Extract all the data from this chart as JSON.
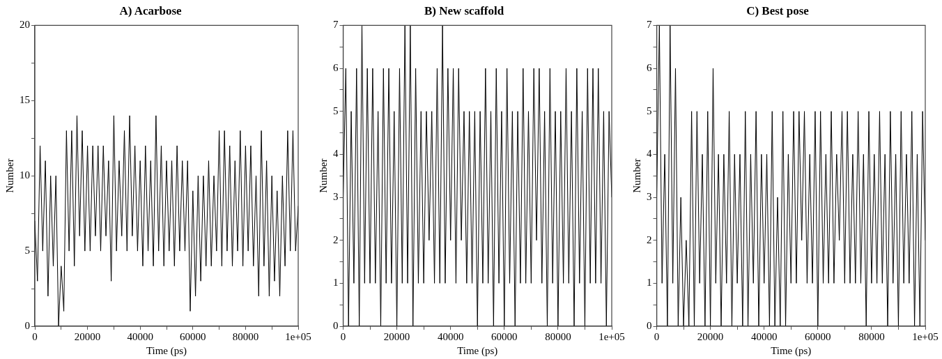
{
  "chart_data": [
    {
      "type": "line",
      "title": "A) Acarbose",
      "xlabel": "Time (ps)",
      "ylabel": "Number",
      "marker": "none",
      "legend": false,
      "x": [
        0,
        1000,
        2000,
        3000,
        4000,
        5000,
        6000,
        7000,
        8000,
        9000,
        10000,
        11000,
        12000,
        13000,
        14000,
        15000,
        16000,
        17000,
        18000,
        19000,
        20000,
        21000,
        22000,
        23000,
        24000,
        25000,
        26000,
        27000,
        28000,
        29000,
        30000,
        31000,
        32000,
        33000,
        34000,
        35000,
        36000,
        37000,
        38000,
        39000,
        40000,
        41000,
        42000,
        43000,
        44000,
        45000,
        46000,
        47000,
        48000,
        49000,
        50000,
        51000,
        52000,
        53000,
        54000,
        55000,
        56000,
        57000,
        58000,
        59000,
        60000,
        61000,
        62000,
        63000,
        64000,
        65000,
        66000,
        67000,
        68000,
        69000,
        70000,
        71000,
        72000,
        73000,
        74000,
        75000,
        76000,
        77000,
        78000,
        79000,
        80000,
        81000,
        82000,
        83000,
        84000,
        85000,
        86000,
        87000,
        88000,
        89000,
        90000,
        91000,
        92000,
        93000,
        94000,
        95000,
        96000,
        97000,
        98000,
        99000,
        100000
      ],
      "series": [
        {
          "color": "#000000",
          "values": [
            7,
            3,
            12,
            5,
            11,
            2,
            10,
            4,
            10,
            0,
            4,
            1,
            13,
            5,
            13,
            4,
            14,
            6,
            13,
            5,
            12,
            5,
            12,
            6,
            12,
            5,
            12,
            6,
            11,
            3,
            14,
            5,
            11,
            6,
            13,
            5,
            14,
            6,
            12,
            5,
            11,
            4,
            12,
            5,
            11,
            4,
            14,
            5,
            12,
            4,
            11,
            5,
            11,
            4,
            12,
            5,
            11,
            5,
            11,
            1,
            9,
            2,
            10,
            3,
            10,
            4,
            11,
            4,
            10,
            5,
            13,
            4,
            13,
            5,
            12,
            4,
            11,
            5,
            13,
            4,
            12,
            5,
            12,
            4,
            10,
            2,
            13,
            4,
            11,
            2,
            10,
            3,
            9,
            2,
            10,
            4,
            13,
            5,
            13,
            5,
            8
          ]
        }
      ],
      "xlim": [
        0,
        100000
      ],
      "xticks": [
        0,
        {
          "value": 10000,
          "label": null
        },
        20000,
        {
          "value": 30000,
          "label": null
        },
        40000,
        {
          "value": 50000,
          "label": null
        },
        60000,
        {
          "value": 70000,
          "label": null
        },
        80000,
        {
          "value": 90000,
          "label": null
        },
        {
          "value": 100000,
          "label": "1e+05"
        }
      ],
      "ylim": [
        0,
        20
      ],
      "yticks": [
        0,
        {
          "value": 2.5,
          "label": null
        },
        5,
        {
          "value": 7.5,
          "label": null
        },
        10,
        {
          "value": 12.5,
          "label": null
        },
        15,
        {
          "value": 17.5,
          "label": null
        },
        20
      ]
    },
    {
      "type": "line",
      "title": "B) New scaffold",
      "xlabel": "Time (ps)",
      "ylabel": "Number",
      "marker": "none",
      "legend": false,
      "x": [
        0,
        1000,
        2000,
        3000,
        4000,
        5000,
        6000,
        7000,
        8000,
        9000,
        10000,
        11000,
        12000,
        13000,
        14000,
        15000,
        16000,
        17000,
        18000,
        19000,
        20000,
        21000,
        22000,
        23000,
        24000,
        25000,
        26000,
        27000,
        28000,
        29000,
        30000,
        31000,
        32000,
        33000,
        34000,
        35000,
        36000,
        37000,
        38000,
        39000,
        40000,
        41000,
        42000,
        43000,
        44000,
        45000,
        46000,
        47000,
        48000,
        49000,
        50000,
        51000,
        52000,
        53000,
        54000,
        55000,
        56000,
        57000,
        58000,
        59000,
        60000,
        61000,
        62000,
        63000,
        64000,
        65000,
        66000,
        67000,
        68000,
        69000,
        70000,
        71000,
        72000,
        73000,
        74000,
        75000,
        76000,
        77000,
        78000,
        79000,
        80000,
        81000,
        82000,
        83000,
        84000,
        85000,
        86000,
        87000,
        88000,
        89000,
        90000,
        91000,
        92000,
        93000,
        94000,
        95000,
        96000,
        97000,
        98000,
        99000,
        100000
      ],
      "series": [
        {
          "color": "#000000",
          "values": [
            3,
            6,
            0,
            5,
            1,
            6,
            0,
            7,
            1,
            6,
            1,
            6,
            1,
            5,
            0,
            6,
            1,
            6,
            1,
            5,
            0,
            6,
            1,
            7,
            1,
            7,
            0,
            6,
            1,
            5,
            1,
            5,
            2,
            5,
            1,
            6,
            1,
            7,
            1,
            6,
            2,
            6,
            1,
            6,
            2,
            5,
            1,
            5,
            1,
            5,
            0,
            5,
            1,
            6,
            1,
            5,
            0,
            6,
            1,
            5,
            0,
            6,
            1,
            5,
            0,
            5,
            1,
            6,
            1,
            5,
            1,
            6,
            2,
            6,
            1,
            5,
            0,
            6,
            1,
            5,
            0,
            5,
            1,
            6,
            1,
            5,
            0,
            6,
            1,
            5,
            0,
            6,
            1,
            6,
            1,
            6,
            1,
            5,
            0,
            5,
            3
          ]
        }
      ],
      "xlim": [
        0,
        100000
      ],
      "xticks": [
        0,
        {
          "value": 10000,
          "label": null
        },
        20000,
        {
          "value": 30000,
          "label": null
        },
        40000,
        {
          "value": 50000,
          "label": null
        },
        60000,
        {
          "value": 70000,
          "label": null
        },
        80000,
        {
          "value": 90000,
          "label": null
        },
        {
          "value": 100000,
          "label": "1e+05"
        }
      ],
      "ylim": [
        0,
        7
      ],
      "yticks": [
        0,
        {
          "value": 0.5,
          "label": null
        },
        1,
        {
          "value": 1.5,
          "label": null
        },
        2,
        {
          "value": 2.5,
          "label": null
        },
        3,
        {
          "value": 3.5,
          "label": null
        },
        4,
        {
          "value": 4.5,
          "label": null
        },
        5,
        {
          "value": 5.5,
          "label": null
        },
        6,
        {
          "value": 6.5,
          "label": null
        },
        7
      ]
    },
    {
      "type": "line",
      "title": "C) Best pose",
      "xlabel": "Time (ps)",
      "ylabel": "Number",
      "marker": "none",
      "legend": false,
      "x": [
        0,
        1000,
        2000,
        3000,
        4000,
        5000,
        6000,
        7000,
        8000,
        9000,
        10000,
        11000,
        12000,
        13000,
        14000,
        15000,
        16000,
        17000,
        18000,
        19000,
        20000,
        21000,
        22000,
        23000,
        24000,
        25000,
        26000,
        27000,
        28000,
        29000,
        30000,
        31000,
        32000,
        33000,
        34000,
        35000,
        36000,
        37000,
        38000,
        39000,
        40000,
        41000,
        42000,
        43000,
        44000,
        45000,
        46000,
        47000,
        48000,
        49000,
        50000,
        51000,
        52000,
        53000,
        54000,
        55000,
        56000,
        57000,
        58000,
        59000,
        60000,
        61000,
        62000,
        63000,
        64000,
        65000,
        66000,
        67000,
        68000,
        69000,
        70000,
        71000,
        72000,
        73000,
        74000,
        75000,
        76000,
        77000,
        78000,
        79000,
        80000,
        81000,
        82000,
        83000,
        84000,
        85000,
        86000,
        87000,
        88000,
        89000,
        90000,
        91000,
        92000,
        93000,
        94000,
        95000,
        96000,
        97000,
        98000,
        99000,
        100000
      ],
      "series": [
        {
          "color": "#000000",
          "values": [
            3,
            7,
            1,
            4,
            0,
            7,
            1,
            6,
            0,
            3,
            0,
            2,
            0,
            5,
            0,
            5,
            1,
            4,
            0,
            5,
            0,
            6,
            1,
            4,
            0,
            4,
            1,
            5,
            0,
            4,
            1,
            4,
            0,
            5,
            0,
            4,
            1,
            5,
            0,
            4,
            1,
            4,
            0,
            5,
            0,
            3,
            0,
            5,
            0,
            4,
            1,
            5,
            1,
            5,
            2,
            5,
            1,
            4,
            1,
            5,
            0,
            5,
            1,
            4,
            1,
            5,
            1,
            4,
            2,
            5,
            1,
            5,
            1,
            4,
            1,
            5,
            1,
            4,
            0,
            5,
            1,
            4,
            1,
            5,
            1,
            4,
            0,
            5,
            1,
            4,
            0,
            5,
            1,
            4,
            1,
            5,
            0,
            4,
            0,
            5,
            2
          ]
        }
      ],
      "xlim": [
        0,
        100000
      ],
      "xticks": [
        0,
        {
          "value": 10000,
          "label": null
        },
        20000,
        {
          "value": 30000,
          "label": null
        },
        40000,
        {
          "value": 50000,
          "label": null
        },
        60000,
        {
          "value": 70000,
          "label": null
        },
        80000,
        {
          "value": 90000,
          "label": null
        },
        {
          "value": 100000,
          "label": "1e+05"
        }
      ],
      "ylim": [
        0,
        7
      ],
      "yticks": [
        0,
        {
          "value": 0.5,
          "label": null
        },
        1,
        {
          "value": 1.5,
          "label": null
        },
        2,
        {
          "value": 2.5,
          "label": null
        },
        3,
        {
          "value": 3.5,
          "label": null
        },
        4,
        {
          "value": 4.5,
          "label": null
        },
        5,
        {
          "value": 5.5,
          "label": null
        },
        6,
        {
          "value": 6.5,
          "label": null
        },
        7
      ]
    }
  ]
}
